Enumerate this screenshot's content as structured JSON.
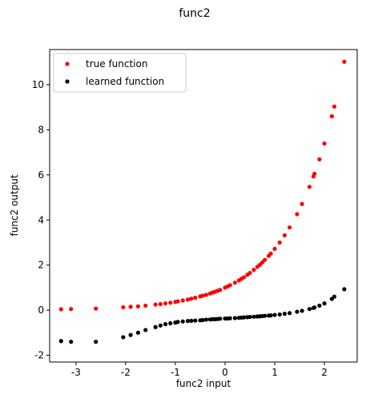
{
  "chart_data": {
    "type": "scatter",
    "title": "func2",
    "xlabel": "func2 input",
    "ylabel": "func2 output",
    "x": [
      -3.3,
      -3.1,
      -2.6,
      -2.05,
      -1.9,
      -1.75,
      -1.6,
      -1.4,
      -1.3,
      -1.2,
      -1.1,
      -1.0,
      -0.95,
      -0.85,
      -0.75,
      -0.68,
      -0.6,
      -0.5,
      -0.45,
      -0.38,
      -0.3,
      -0.25,
      -0.2,
      -0.15,
      -0.1,
      0,
      0.05,
      0.1,
      0.2,
      0.28,
      0.33,
      0.38,
      0.45,
      0.5,
      0.58,
      0.65,
      0.7,
      0.75,
      0.8,
      0.88,
      0.92,
      1.0,
      1.1,
      1.2,
      1.3,
      1.45,
      1.55,
      1.7,
      1.78,
      1.8,
      1.9,
      2.0,
      2.15,
      2.2,
      2.4
    ],
    "series": [
      {
        "name": "true function",
        "color": "#ff0000",
        "values": [
          0.04,
          0.05,
          0.07,
          0.13,
          0.15,
          0.17,
          0.2,
          0.25,
          0.27,
          0.3,
          0.33,
          0.37,
          0.39,
          0.43,
          0.47,
          0.51,
          0.55,
          0.61,
          0.64,
          0.68,
          0.74,
          0.78,
          0.82,
          0.86,
          0.9,
          1,
          1.05,
          1.11,
          1.22,
          1.32,
          1.39,
          1.46,
          1.57,
          1.65,
          1.79,
          1.92,
          2.01,
          2.12,
          2.23,
          2.41,
          2.51,
          2.72,
          3.0,
          3.32,
          3.67,
          4.26,
          4.71,
          5.47,
          5.93,
          6.05,
          6.69,
          7.39,
          8.6,
          9.03,
          11.02
        ]
      },
      {
        "name": "learned function",
        "color": "#000000",
        "values": [
          -1.37,
          -1.4,
          -1.4,
          -1.2,
          -1.1,
          -1.0,
          -0.88,
          -0.75,
          -0.68,
          -0.62,
          -0.58,
          -0.55,
          -0.52,
          -0.5,
          -0.48,
          -0.47,
          -0.46,
          -0.45,
          -0.44,
          -0.42,
          -0.41,
          -0.4,
          -0.4,
          -0.39,
          -0.38,
          -0.37,
          -0.37,
          -0.36,
          -0.35,
          -0.34,
          -0.33,
          -0.32,
          -0.31,
          -0.3,
          -0.29,
          -0.28,
          -0.27,
          -0.26,
          -0.25,
          -0.24,
          -0.23,
          -0.21,
          -0.19,
          -0.16,
          -0.13,
          -0.07,
          -0.03,
          0.05,
          0.1,
          0.12,
          0.2,
          0.3,
          0.5,
          0.6,
          0.93
        ]
      }
    ],
    "xlim": [
      -3.53,
      2.66
    ],
    "ylim": [
      -2.3,
      11.56
    ],
    "xticks": [
      -3,
      -2,
      -1,
      0,
      1,
      2
    ],
    "yticks": [
      -2,
      0,
      2,
      4,
      6,
      8,
      10
    ],
    "legend": "upper left"
  }
}
